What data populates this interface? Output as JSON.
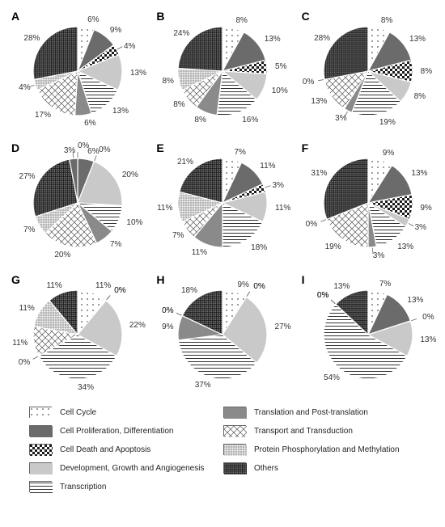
{
  "background_color": "#ffffff",
  "pie_radius": 55,
  "label_fontsize": 10,
  "letter_fontsize": 14,
  "categories": [
    {
      "key": "cell_cycle",
      "label": "Cell Cycle",
      "pattern": "dots_sparse",
      "fg": "#555555",
      "bg": "#ffffff"
    },
    {
      "key": "cell_prolif",
      "label": "Cell Proliferation, Differentiation",
      "pattern": "solid",
      "fg": "#6b6b6b",
      "bg": "#6b6b6b"
    },
    {
      "key": "cell_death",
      "label": "Cell Death and Apoptosis",
      "pattern": "checker",
      "fg": "#1a1a1a",
      "bg": "#ffffff"
    },
    {
      "key": "development",
      "label": "Development, Growth and  Angiogenesis",
      "pattern": "solid",
      "fg": "#c9c9c9",
      "bg": "#c9c9c9"
    },
    {
      "key": "transcription",
      "label": "Transcription",
      "pattern": "hlines",
      "fg": "#333333",
      "bg": "#ffffff"
    },
    {
      "key": "translation",
      "label": "Translation and Post-translation",
      "pattern": "solid",
      "fg": "#8a8a8a",
      "bg": "#8a8a8a"
    },
    {
      "key": "transport",
      "label": "Transport and Transduction",
      "pattern": "diamond",
      "fg": "#555555",
      "bg": "#ffffff"
    },
    {
      "key": "protein_phos",
      "label": "Protein Phosphorylation and Methylation",
      "pattern": "grid",
      "fg": "#888888",
      "bg": "#ffffff"
    },
    {
      "key": "others",
      "label": "Others",
      "pattern": "crosshatch",
      "fg": "#2b2b2b",
      "bg": "#6b6b6b"
    }
  ],
  "legend_order": [
    "cell_cycle",
    "translation",
    "cell_prolif",
    "transport",
    "cell_death",
    "protein_phos",
    "development",
    "others",
    "transcription"
  ],
  "charts": [
    {
      "letter": "A",
      "slices": [
        {
          "cat": "cell_cycle",
          "value": 6
        },
        {
          "cat": "cell_prolif",
          "value": 9
        },
        {
          "cat": "cell_death",
          "value": 4
        },
        {
          "cat": "development",
          "value": 13
        },
        {
          "cat": "transcription",
          "value": 13
        },
        {
          "cat": "translation",
          "value": 6
        },
        {
          "cat": "transport",
          "value": 17
        },
        {
          "cat": "protein_phos",
          "value": 4
        },
        {
          "cat": "others",
          "value": 28
        }
      ]
    },
    {
      "letter": "B",
      "slices": [
        {
          "cat": "cell_cycle",
          "value": 8
        },
        {
          "cat": "cell_prolif",
          "value": 13
        },
        {
          "cat": "cell_death",
          "value": 5
        },
        {
          "cat": "development",
          "value": 10
        },
        {
          "cat": "transcription",
          "value": 16
        },
        {
          "cat": "translation",
          "value": 8
        },
        {
          "cat": "transport",
          "value": 8
        },
        {
          "cat": "protein_phos",
          "value": 8
        },
        {
          "cat": "others",
          "value": 24
        }
      ]
    },
    {
      "letter": "C",
      "slices": [
        {
          "cat": "cell_cycle",
          "value": 8
        },
        {
          "cat": "cell_prolif",
          "value": 13
        },
        {
          "cat": "cell_death",
          "value": 8
        },
        {
          "cat": "development",
          "value": 8
        },
        {
          "cat": "transcription",
          "value": 19
        },
        {
          "cat": "translation",
          "value": 3
        },
        {
          "cat": "transport",
          "value": 13
        },
        {
          "cat": "protein_phos",
          "value": 0
        },
        {
          "cat": "others",
          "value": 28
        }
      ]
    },
    {
      "letter": "D",
      "slices": [
        {
          "cat": "cell_cycle",
          "value": 0
        },
        {
          "cat": "cell_prolif",
          "value": 6
        },
        {
          "cat": "cell_death",
          "value": 0
        },
        {
          "cat": "development",
          "value": 20
        },
        {
          "cat": "transcription",
          "value": 10
        },
        {
          "cat": "translation",
          "value": 7
        },
        {
          "cat": "transport",
          "value": 20
        },
        {
          "cat": "protein_phos",
          "value": 7
        },
        {
          "cat": "others",
          "value": 27
        },
        {
          "cat": "cell_prolif",
          "value": 3,
          "label_override": "3%"
        }
      ]
    },
    {
      "letter": "E",
      "slices": [
        {
          "cat": "cell_cycle",
          "value": 7
        },
        {
          "cat": "cell_prolif",
          "value": 11
        },
        {
          "cat": "cell_death",
          "value": 3
        },
        {
          "cat": "development",
          "value": 11
        },
        {
          "cat": "transcription",
          "value": 18
        },
        {
          "cat": "translation",
          "value": 11
        },
        {
          "cat": "transport",
          "value": 7
        },
        {
          "cat": "protein_phos",
          "value": 11
        },
        {
          "cat": "others",
          "value": 21
        }
      ]
    },
    {
      "letter": "F",
      "slices": [
        {
          "cat": "cell_cycle",
          "value": 9
        },
        {
          "cat": "cell_prolif",
          "value": 13
        },
        {
          "cat": "cell_death",
          "value": 9
        },
        {
          "cat": "development",
          "value": 3
        },
        {
          "cat": "transcription",
          "value": 13
        },
        {
          "cat": "translation",
          "value": 3
        },
        {
          "cat": "transport",
          "value": 19
        },
        {
          "cat": "protein_phos",
          "value": 0
        },
        {
          "cat": "others",
          "value": 31
        }
      ]
    },
    {
      "letter": "G",
      "slices": [
        {
          "cat": "cell_cycle",
          "value": 11
        },
        {
          "cat": "cell_prolif",
          "value": 0
        },
        {
          "cat": "cell_death",
          "value": 0
        },
        {
          "cat": "development",
          "value": 22
        },
        {
          "cat": "transcription",
          "value": 34
        },
        {
          "cat": "translation",
          "value": 0
        },
        {
          "cat": "transport",
          "value": 11
        },
        {
          "cat": "protein_phos",
          "value": 11
        },
        {
          "cat": "others",
          "value": 11
        }
      ]
    },
    {
      "letter": "H",
      "slices": [
        {
          "cat": "cell_cycle",
          "value": 9
        },
        {
          "cat": "cell_prolif",
          "value": 0
        },
        {
          "cat": "cell_death",
          "value": 0
        },
        {
          "cat": "development",
          "value": 27
        },
        {
          "cat": "transcription",
          "value": 37
        },
        {
          "cat": "translation",
          "value": 9
        },
        {
          "cat": "transport",
          "value": 0
        },
        {
          "cat": "protein_phos",
          "value": 0
        },
        {
          "cat": "others",
          "value": 18
        }
      ]
    },
    {
      "letter": "I",
      "slices": [
        {
          "cat": "cell_cycle",
          "value": 7
        },
        {
          "cat": "cell_prolif",
          "value": 13
        },
        {
          "cat": "cell_death",
          "value": 0
        },
        {
          "cat": "development",
          "value": 13
        },
        {
          "cat": "transcription",
          "value": 54
        },
        {
          "cat": "translation",
          "value": 0
        },
        {
          "cat": "transport",
          "value": 0
        },
        {
          "cat": "protein_phos",
          "value": 0
        },
        {
          "cat": "others",
          "value": 13
        }
      ]
    }
  ]
}
